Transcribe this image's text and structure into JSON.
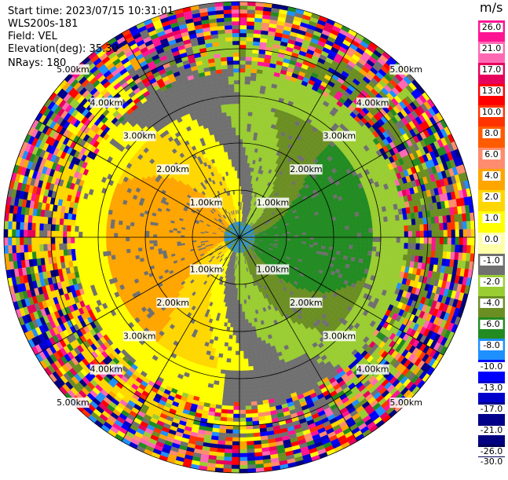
{
  "header": {
    "start_time": "Start time: 2023/07/15 10:31:01",
    "instrument": "WLS200s-181",
    "field": "Field: VEL",
    "elevation": "Elevation(deg): 35.30",
    "nrays": "NRays: 180"
  },
  "chart_data": {
    "type": "heatmap",
    "projection": "polar PPI",
    "field": "VEL",
    "units": "m/s",
    "range_rings_km": [
      1,
      2,
      3,
      4,
      5
    ],
    "ring_labels": [
      "1.00km",
      "2.00km",
      "3.00km",
      "4.00km",
      "5.00km"
    ],
    "max_range_km": 5.0,
    "colorbar": {
      "unit_label": "m/s",
      "ticks": [
        "26.0",
        "21.0",
        "17.0",
        "13.0",
        "10.0",
        "8.0",
        "6.0",
        "4.0",
        "2.0",
        "1.0",
        "0.0",
        "-1.0",
        "-2.0",
        "-4.0",
        "-6.0",
        "-8.0",
        "-10.0",
        "-13.0",
        "-17.0",
        "-21.0",
        "-26.0",
        "-30.0"
      ],
      "colors": [
        "#ff1493",
        "#ff69b4",
        "#e6005c",
        "#ff0000",
        "#ff3300",
        "#ff5c00",
        "#ff8c6e",
        "#ffa500",
        "#ffd700",
        "#ffff00",
        "#ffffaa",
        "#707070",
        "#9acd32",
        "#6b8e23",
        "#228b22",
        "#1e90ff",
        "#0000ff",
        "#0000cd",
        "#00008b",
        "#000080",
        "#000055"
      ]
    }
  }
}
